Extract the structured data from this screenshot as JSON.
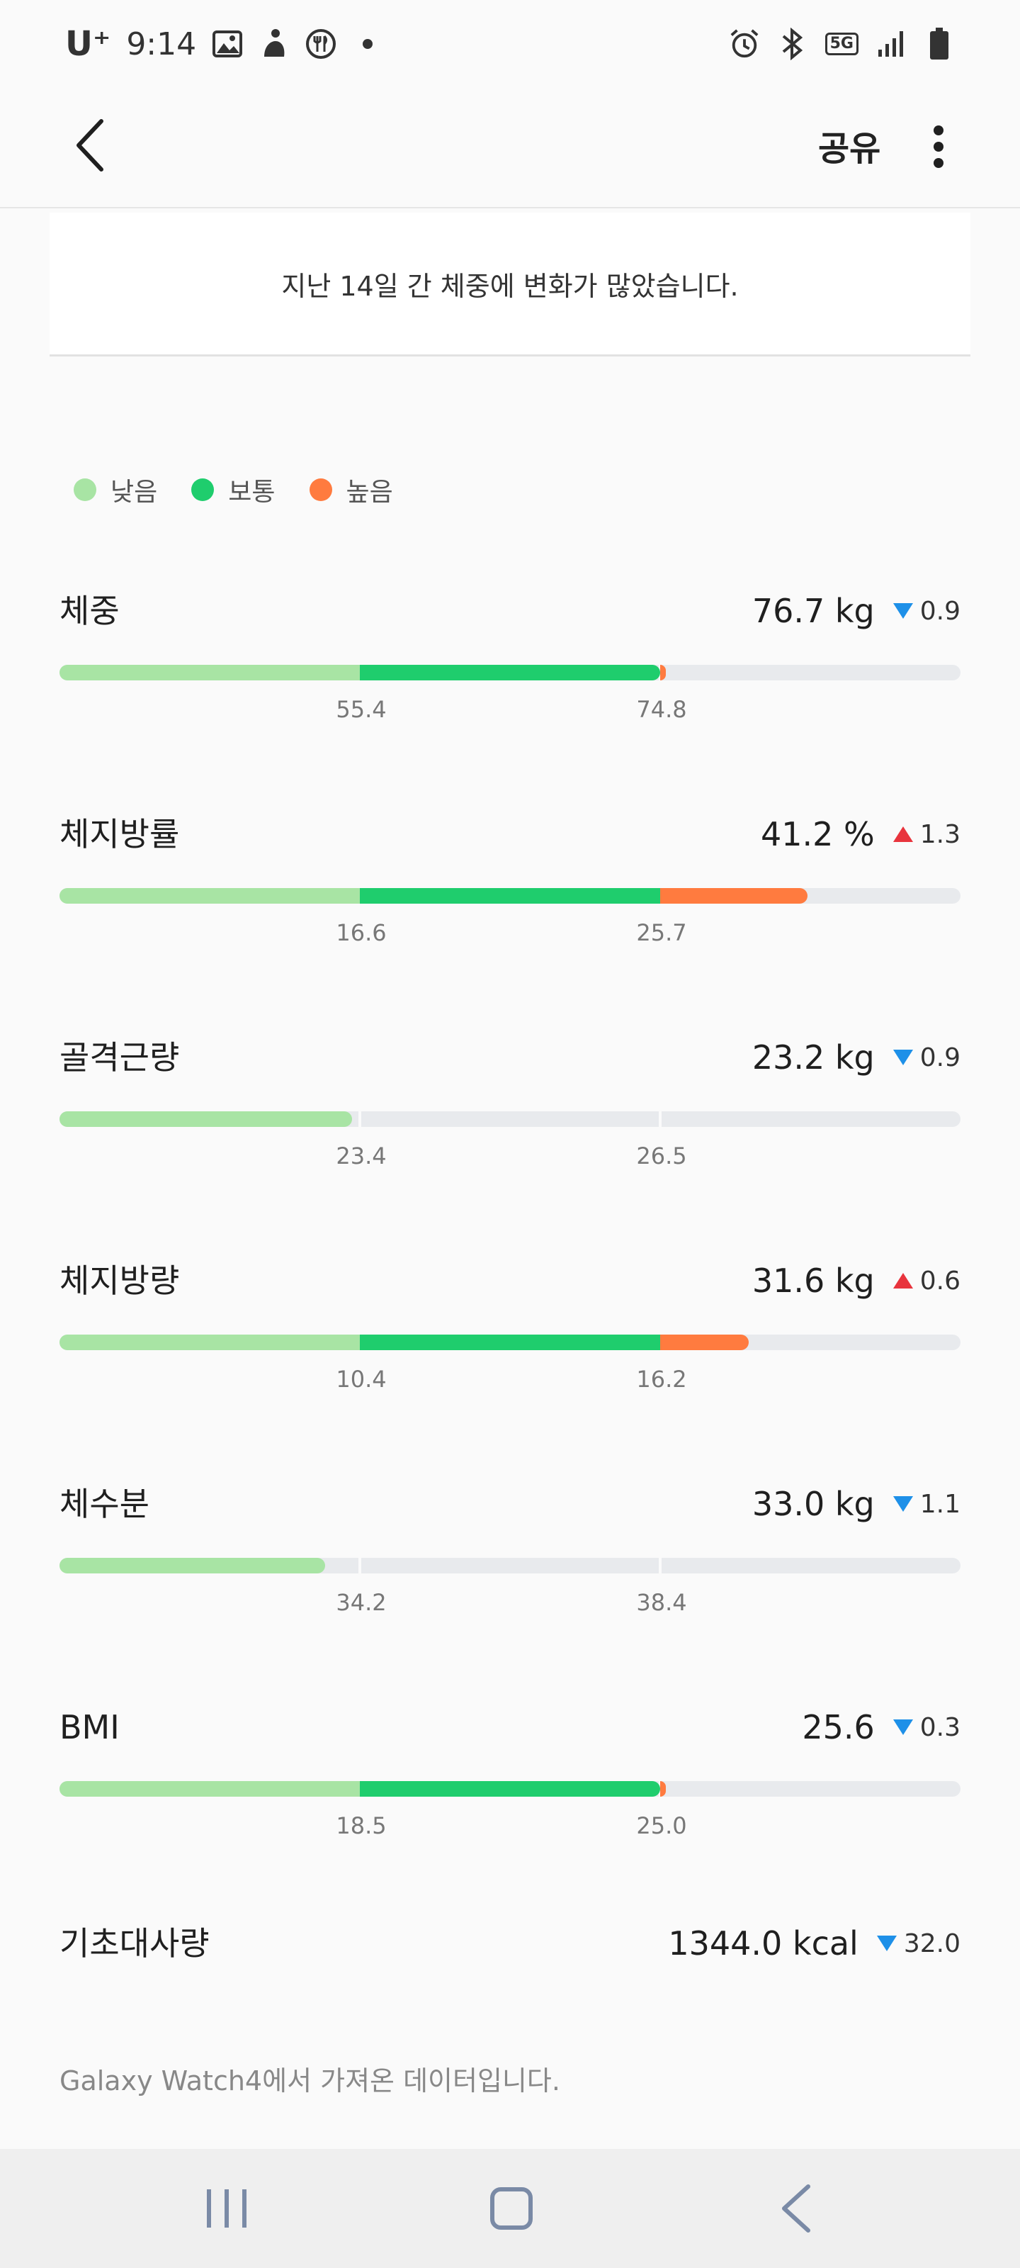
{
  "status_bar": {
    "carrier": "U⁺",
    "time": "9:14",
    "network_badge": "5G",
    "icons_left": [
      "gallery-icon",
      "activity-icon",
      "food-icon",
      "dot-icon"
    ],
    "icons_right": [
      "alarm-icon",
      "bluetooth-icon",
      "5g-icon",
      "signal-icon",
      "battery-icon"
    ]
  },
  "app_bar": {
    "share_label": "공유"
  },
  "message": "지난 14일 간 체중에 변화가 많았습니다.",
  "legend": [
    {
      "label": "낮음",
      "color": "#a8e4a4"
    },
    {
      "label": "보통",
      "color": "#1fcd6d"
    },
    {
      "label": "높음",
      "color": "#ff7b3f"
    }
  ],
  "colors": {
    "low": "#a8e4a4",
    "normal": "#1fcd6d",
    "high": "#ff7b3f",
    "track": "#e8eaed",
    "down": "#1e90e8",
    "up": "#e8343d"
  },
  "metrics": [
    {
      "label": "체중",
      "value": "76.7 kg",
      "direction": "down",
      "change": "0.9",
      "low_threshold": "55.4",
      "high_threshold": "74.8",
      "fill_fraction": 0.67
    },
    {
      "label": "체지방률",
      "value": "41.2 %",
      "direction": "up",
      "change": "1.3",
      "low_threshold": "16.6",
      "high_threshold": "25.7",
      "fill_fraction": 0.83
    },
    {
      "label": "골격근량",
      "value": "23.2 kg",
      "direction": "down",
      "change": "0.9",
      "low_threshold": "23.4",
      "high_threshold": "26.5",
      "fill_fraction": 0.325
    },
    {
      "label": "체지방량",
      "value": "31.6 kg",
      "direction": "up",
      "change": "0.6",
      "low_threshold": "10.4",
      "high_threshold": "16.2",
      "fill_fraction": 0.765
    },
    {
      "label": "체수분",
      "value": "33.0 kg",
      "direction": "down",
      "change": "1.1",
      "low_threshold": "34.2",
      "high_threshold": "38.4",
      "fill_fraction": 0.295
    },
    {
      "label": "BMI",
      "value": "25.6",
      "direction": "down",
      "change": "0.3",
      "low_threshold": "18.5",
      "high_threshold": "25.0",
      "fill_fraction": 0.67
    }
  ],
  "bmr": {
    "label": "기초대사량",
    "value": "1344.0 kcal",
    "direction": "down",
    "change": "32.0"
  },
  "footer_note": "Galaxy Watch4에서 가져온 데이터입니다."
}
